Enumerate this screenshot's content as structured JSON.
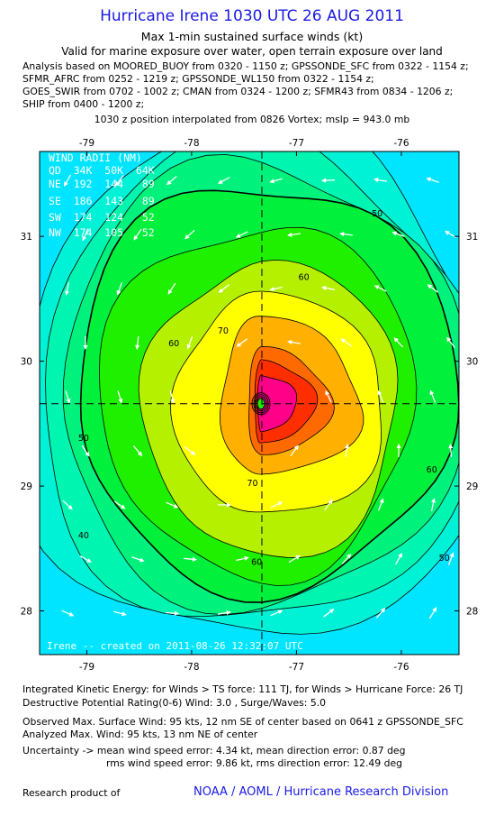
{
  "header": {
    "title": "Hurricane Irene 1030 UTC 26 AUG 2011",
    "subtitle": "Max 1-min sustained surface winds (kt)",
    "valid_line": "Valid for marine exposure over water, open terrain exposure over land",
    "analysis_lines": [
      "Analysis based on MOORED_BUOY from 0320 - 1150 z; GPSSONDE_SFC from 0322 - 1154 z;",
      "SFMR_AFRC from 0252 - 1219 z; GPSSONDE_WL150 from 0322 - 1154 z;",
      "GOES_SWIR from 0702 - 1002 z; CMAN from 0324 - 1200 z; SFMR43 from 0834 - 1206 z;",
      "SHIP from 0400 - 1200 z;"
    ],
    "position_line": "1030 z position interpolated from 0826 Vortex; mslp = 943.0 mb"
  },
  "wind_radii": {
    "title": "WIND RADII (NM)",
    "header_row": "QD  34K  50K  64K",
    "rows": [
      "NE  192  144   89",
      "SE  186  143   89",
      "SW  174  124   52",
      "NW  174  105   52"
    ]
  },
  "credit": "Irene -- created on 2011-08-26 12:32:07 UTC",
  "chart_data": {
    "type": "heatmap",
    "description_fields": {
      "x_axis": "longitude",
      "y_axis": "latitude"
    },
    "xlim": [
      -79.45,
      -75.45
    ],
    "ylim": [
      27.65,
      31.68
    ],
    "xticks": [
      "-79",
      "-78",
      "-77",
      "-76"
    ],
    "xtick_values": [
      -79,
      -78,
      -77,
      -76
    ],
    "yticks": [
      "28",
      "29",
      "30",
      "31"
    ],
    "ytick_values": [
      28,
      29,
      30,
      31
    ],
    "center": {
      "lon": -77.33,
      "lat": 29.66
    },
    "contour_levels": [
      10,
      20,
      30,
      40,
      50,
      60,
      70,
      80,
      90
    ],
    "contour_labels": [
      {
        "text": "50",
        "lon": -76.23,
        "lat": 31.16
      },
      {
        "text": "60",
        "lon": -76.93,
        "lat": 30.65
      },
      {
        "text": "60",
        "lon": -78.17,
        "lat": 30.12
      },
      {
        "text": "70",
        "lon": -77.7,
        "lat": 30.22
      },
      {
        "text": "70",
        "lon": -77.42,
        "lat": 29.0
      },
      {
        "text": "60",
        "lon": -75.71,
        "lat": 29.11
      },
      {
        "text": "50",
        "lon": -79.03,
        "lat": 29.36
      },
      {
        "text": "50",
        "lon": -75.59,
        "lat": 28.4
      },
      {
        "text": "40",
        "lon": -79.03,
        "lat": 28.58
      },
      {
        "text": "60",
        "lon": -77.38,
        "lat": 28.37
      }
    ],
    "colors": {
      "lt10": "#00e5ff",
      "c10": "#00f2d6",
      "c20": "#00f5b0",
      "c30": "#00f27c",
      "c40": "#00f03c",
      "c50": "#1ef000",
      "c60": "#b4f000",
      "c70": "#ffff00",
      "c80": "#ffb000",
      "c90": "#ff6a00",
      "c100": "#ff2e00",
      "c110": "#ff0088"
    }
  },
  "footer": {
    "ike": "Integrated Kinetic Energy:  for Winds > TS force: 111 TJ,  for Winds > Hurricane Force: 26 TJ",
    "dpr": "Destructive Potential Rating(0-6)   Wind: 3.0 , Surge/Waves: 5.0",
    "observed": "Observed Max. Surface Wind: 95 kts, 12 nm SE of center based on 0641 z GPSSONDE_SFC",
    "analyzed": "Analyzed Max. Wind: 95 kts, 13 nm NE of center",
    "uncert1": "Uncertainty -> mean wind speed error: 4.34 kt,   mean direction error: 0.87 deg",
    "uncert2": "rms wind speed error: 9.86 kt,   rms direction error: 12.49 deg",
    "research": "Research product of",
    "noaa": "NOAA / AOML / Hurricane Research Division"
  }
}
